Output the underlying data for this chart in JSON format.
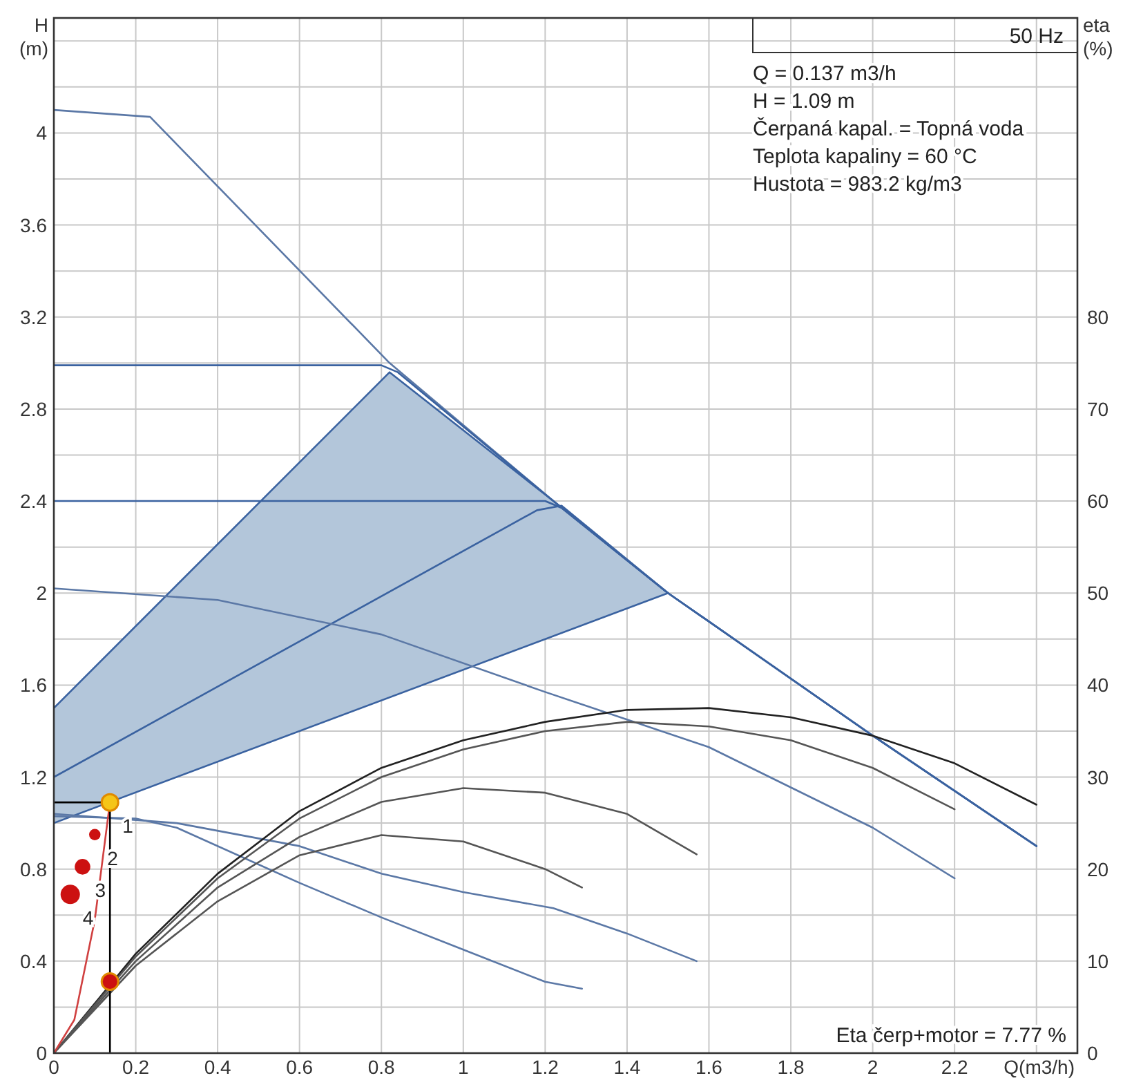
{
  "chart_data": {
    "type": "line",
    "title": "50 Hz",
    "xlabel": "Q(m3/h)",
    "ylabel": "H (m)",
    "y2label": "eta (%)",
    "xlim": [
      0,
      2.5
    ],
    "xticks": [
      0,
      0.2,
      0.4,
      0.6,
      0.8,
      1,
      1.2,
      1.4,
      1.6,
      1.8,
      2,
      2.2,
      {
        "value": 2.4,
        "label": null
      }
    ],
    "ylim": [
      0,
      4.5
    ],
    "yticks": [
      0,
      {
        "value": 0.2,
        "label": null
      },
      0.4,
      {
        "value": 0.6,
        "label": null
      },
      0.8,
      {
        "value": 1,
        "label": null
      },
      1.2,
      {
        "value": 1.4,
        "label": null
      },
      1.6,
      {
        "value": 1.8,
        "label": null
      },
      2,
      {
        "value": 2.2,
        "label": null
      },
      2.4,
      {
        "value": 2.6,
        "label": null
      },
      2.8,
      {
        "value": 3,
        "label": null
      },
      3.2,
      {
        "value": 3.4,
        "label": null
      },
      3.6,
      {
        "value": 3.8,
        "label": null
      },
      4,
      {
        "value": 4.2,
        "label": null
      },
      {
        "value": 4.4,
        "label": null
      }
    ],
    "y2lim": [
      0,
      112.5
    ],
    "y2ticks": [
      0,
      10,
      20,
      30,
      40,
      50,
      60,
      70,
      80
    ],
    "grid": true,
    "series": [
      {
        "color": "#3a62a0",
        "x": [
          0,
          0.82,
          1.22,
          1.5
        ],
        "lower": [
          1.0,
          1.55,
          1.81,
          2.0
        ],
        "upper": [
          1.5,
          2.96,
          2.4,
          2.0
        ],
        "values": [
          1.5,
          2.96,
          2.4,
          2.0
        ]
      },
      {
        "color": "#3a62a0",
        "x": [
          0,
          1.5
        ],
        "values": [
          1.0,
          2.0
        ]
      },
      {
        "color": "#5b78a6",
        "x": [
          0,
          0.235,
          0.82,
          1.22,
          1.5,
          2.0,
          2.4
        ],
        "values": [
          4.1,
          4.07,
          3.0,
          2.4,
          2.0,
          1.38,
          0.9
        ]
      },
      {
        "color": "#3a62a0",
        "x": [
          0,
          0.8,
          0.84,
          1.22,
          1.5,
          2.0,
          2.4
        ],
        "values": [
          2.99,
          2.99,
          2.96,
          2.4,
          2.0,
          1.38,
          0.9
        ]
      },
      {
        "color": "#3a62a0",
        "x": [
          0,
          1.2,
          1.24,
          1.5,
          2.0,
          2.4
        ],
        "values": [
          2.4,
          2.4,
          2.37,
          2.0,
          1.38,
          0.9
        ]
      },
      {
        "color": "#3a62a0",
        "x": [
          0,
          1.18,
          1.24,
          1.5
        ],
        "values": [
          1.2,
          2.36,
          2.38,
          2.0
        ]
      },
      {
        "color": "#5b78a6",
        "x": [
          0,
          0.4,
          0.8,
          1.2,
          1.6,
          2.0,
          2.2
        ],
        "values": [
          2.02,
          1.97,
          1.82,
          1.57,
          1.33,
          0.98,
          0.76
        ]
      },
      {
        "color": "#5b78a6",
        "x": [
          0,
          0.3,
          0.6,
          0.8,
          1.0,
          1.22,
          1.4,
          1.57
        ],
        "values": [
          1.04,
          1.0,
          0.9,
          0.78,
          0.7,
          0.63,
          0.52,
          0.4
        ]
      },
      {
        "color": "#5b78a6",
        "x": [
          0,
          0.2,
          0.3,
          0.6,
          0.8,
          1.0,
          1.2,
          1.29
        ],
        "values": [
          1.03,
          1.02,
          0.98,
          0.74,
          0.59,
          0.45,
          0.31,
          0.28
        ]
      },
      {
        "axis": "y2",
        "color": "#222222",
        "x": [
          0,
          0.2,
          0.4,
          0.6,
          0.8,
          1.0,
          1.2,
          1.4,
          1.6,
          1.8,
          2.0,
          2.2,
          2.4
        ],
        "values": [
          0,
          10.8,
          19.5,
          26.3,
          31,
          34,
          36,
          37.3,
          37.5,
          36.5,
          34.5,
          31.5,
          27
        ]
      },
      {
        "axis": "y2",
        "color": "#555555",
        "x": [
          0,
          0.2,
          0.4,
          0.6,
          0.8,
          1.0,
          1.2,
          1.4,
          1.6,
          1.8,
          2.0,
          2.2
        ],
        "values": [
          0,
          10.5,
          19,
          25.5,
          30,
          33,
          35,
          36,
          35.5,
          34,
          31,
          26.5
        ]
      },
      {
        "axis": "y2",
        "color": "#555555",
        "x": [
          0,
          0.2,
          0.4,
          0.6,
          0.8,
          1.0,
          1.2,
          1.4,
          1.57
        ],
        "values": [
          0,
          10,
          18,
          23.5,
          27.3,
          28.8,
          28.3,
          26,
          21.6
        ]
      },
      {
        "axis": "y2",
        "color": "#555555",
        "x": [
          0,
          0.2,
          0.4,
          0.6,
          0.8,
          1.0,
          1.2,
          1.29
        ],
        "values": [
          0,
          9.5,
          16.5,
          21.5,
          23.7,
          23,
          20,
          18
        ]
      },
      {
        "color": "#d04040",
        "x": [
          0,
          0.05,
          0.1,
          0.137
        ],
        "values": [
          0,
          0.145,
          0.58,
          1.09
        ]
      },
      {
        "color": "#000000",
        "x": [
          0,
          0.137,
          0.137
        ],
        "values": [
          1.09,
          1.09,
          0
        ]
      },
      {
        "type": "bubble",
        "marker": "circle",
        "color": "#cc1111",
        "x": [
          0.1,
          0.07,
          0.04
        ],
        "values": [
          0.95,
          0.81,
          0.69
        ],
        "sizes": [
          0.35,
          0.65,
          1
        ]
      },
      {
        "type": "scatter",
        "marker": "circle",
        "color": "#f5c518",
        "x": [
          0.137
        ],
        "values": [
          1.09
        ]
      },
      {
        "type": "scatter",
        "marker": "circle",
        "axis": "y2",
        "color": "#cc1111",
        "x": [
          0.137
        ],
        "values": [
          7.77
        ]
      }
    ],
    "annotations": [
      {
        "text": "1",
        "x": 0.137,
        "y": 1.09
      },
      {
        "text": "2",
        "x": 0.1,
        "y": 0.95
      },
      {
        "text": "3",
        "x": 0.07,
        "y": 0.81
      },
      {
        "text": "4",
        "x": 0.04,
        "y": 0.69
      },
      "Q = 0.137 m3/h",
      "H = 1.09 m",
      "Čerpaná kapal. = Topná voda",
      "Teplota kapaliny = 60 °C",
      "Hustota = 983.2 kg/m3",
      "Eta čerp+motor = 7.77 %"
    ]
  }
}
